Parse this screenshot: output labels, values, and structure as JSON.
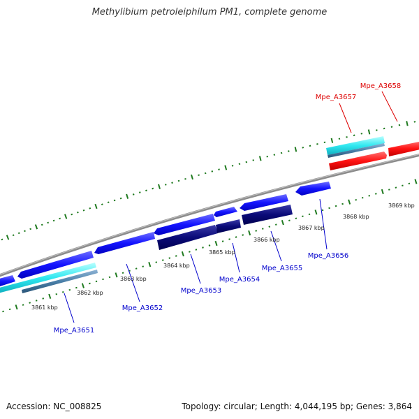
{
  "title": "Methylibium petroleiphilum PM1, complete genome",
  "footer": {
    "accession": "Accession: NC_008825",
    "summary": "Topology: circular; Length: 4,044,195 bp; Genes: 3,864"
  },
  "colors": {
    "backbone": "#8c8c8c",
    "tick": "#1f7a1f",
    "label_text": "#222222",
    "forward_gene": "#1a1aff",
    "forward_gene_dark": "#00007a",
    "reverse_gene": "#ff1a1a",
    "cds_match": "#40e0e8",
    "cds_match_dark": "#4a7fa8",
    "blue_label": "#0000cc",
    "red_label": "#dd0000"
  },
  "kbp_labels": [
    "3861 kbp",
    "3862 kbp",
    "3863 kbp",
    "3864 kbp",
    "3865 kbp",
    "3866 kbp",
    "3867 kbp",
    "3868 kbp",
    "3869 kbp"
  ],
  "genes": [
    {
      "id": "Mpe_A3651",
      "strand": "forward"
    },
    {
      "id": "Mpe_A3652",
      "strand": "forward"
    },
    {
      "id": "Mpe_A3653",
      "strand": "forward"
    },
    {
      "id": "Mpe_A3654",
      "strand": "forward"
    },
    {
      "id": "Mpe_A3655",
      "strand": "forward"
    },
    {
      "id": "Mpe_A3656",
      "strand": "forward"
    },
    {
      "id": "Mpe_A3657",
      "strand": "reverse"
    },
    {
      "id": "Mpe_A3658",
      "strand": "reverse"
    }
  ]
}
